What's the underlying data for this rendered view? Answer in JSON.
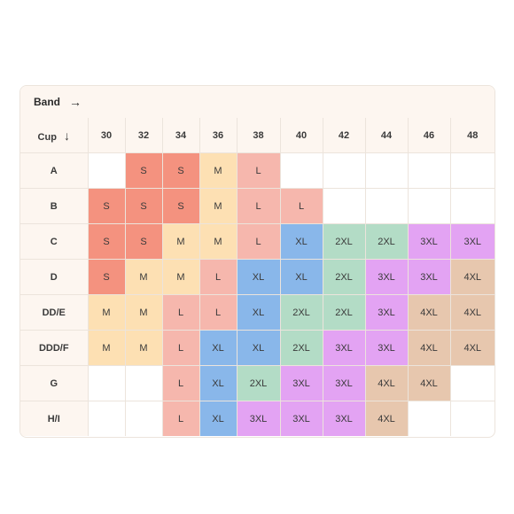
{
  "band_header": {
    "label": "Band",
    "arrow_glyph": "→"
  },
  "cup_header": {
    "label": "Cup",
    "arrow_glyph": "↓"
  },
  "bands": [
    "30",
    "32",
    "34",
    "36",
    "38",
    "40",
    "42",
    "44",
    "46",
    "48"
  ],
  "colors": {
    "S": "#f4927f",
    "M": "#fde0b3",
    "L": "#f6b7ad",
    "XL": "#89b7ea",
    "2XL": "#b3dcc6",
    "3XL": "#e3a3f3",
    "4XL": "#e7c7ae"
  },
  "rows": [
    {
      "cup": "A",
      "cells": [
        "",
        "S",
        "S",
        "M",
        "L",
        "",
        "",
        "",
        "",
        ""
      ]
    },
    {
      "cup": "B",
      "cells": [
        "S",
        "S",
        "S",
        "M",
        "L",
        "L",
        "",
        "",
        "",
        ""
      ]
    },
    {
      "cup": "C",
      "cells": [
        "S",
        "S",
        "M",
        "M",
        "L",
        "XL",
        "2XL",
        "2XL",
        "3XL",
        "3XL"
      ]
    },
    {
      "cup": "D",
      "cells": [
        "S",
        "M",
        "M",
        "L",
        "XL",
        "XL",
        "2XL",
        "3XL",
        "3XL",
        "4XL"
      ]
    },
    {
      "cup": "DD/E",
      "cells": [
        "M",
        "M",
        "L",
        "L",
        "XL",
        "2XL",
        "2XL",
        "3XL",
        "4XL",
        "4XL"
      ]
    },
    {
      "cup": "DDD/F",
      "cells": [
        "M",
        "M",
        "L",
        "XL",
        "XL",
        "2XL",
        "3XL",
        "3XL",
        "4XL",
        "4XL"
      ]
    },
    {
      "cup": "G",
      "cells": [
        "",
        "",
        "L",
        "XL",
        "2XL",
        "3XL",
        "3XL",
        "4XL",
        "4XL",
        ""
      ]
    },
    {
      "cup": "H/I",
      "cells": [
        "",
        "",
        "L",
        "XL",
        "3XL",
        "3XL",
        "3XL",
        "4XL",
        "",
        ""
      ]
    }
  ]
}
